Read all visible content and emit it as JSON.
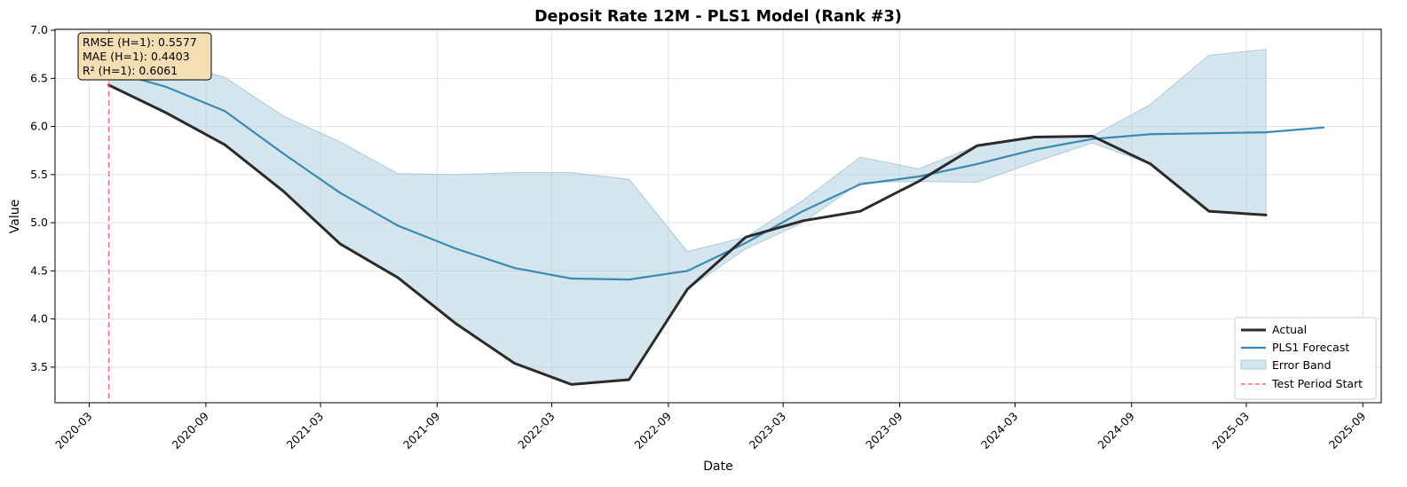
{
  "chart_data": {
    "type": "line",
    "title": "Deposit Rate 12M - PLS1 Model (Rank #3)",
    "xlabel": "Date",
    "ylabel": "Value",
    "ylim": [
      3.13,
      7.01
    ],
    "xlim": [
      "2020-01-07",
      "2025-09-30"
    ],
    "grid": true,
    "legend_position": "lower-right",
    "x_ticks": [
      "2020-03",
      "2020-09",
      "2021-03",
      "2021-09",
      "2022-03",
      "2022-09",
      "2023-03",
      "2023-09",
      "2024-03",
      "2024-09",
      "2025-03",
      "2025-09"
    ],
    "y_ticks": [
      "3.5",
      "4.0",
      "4.5",
      "5.0",
      "5.5",
      "6.0",
      "6.5",
      "7.0"
    ],
    "stats_box": [
      "RMSE (H=1): 0.5577",
      "MAE (H=1): 0.4403",
      "R² (H=1): 0.6061"
    ],
    "legend": [
      "Actual",
      "PLS1 Forecast",
      "Error Band",
      "Test Period Start"
    ],
    "series": [
      {
        "name": "Actual",
        "color": "#2b2b2b",
        "points": [
          [
            "2020-04-01",
            6.43
          ],
          [
            "2020-07-01",
            6.14
          ],
          [
            "2020-10-01",
            5.81
          ],
          [
            "2021-01-01",
            5.33
          ],
          [
            "2021-04-01",
            4.78
          ],
          [
            "2021-07-01",
            4.43
          ],
          [
            "2021-10-01",
            3.95
          ],
          [
            "2022-01-01",
            3.54
          ],
          [
            "2022-04-01",
            3.32
          ],
          [
            "2022-07-01",
            3.37
          ],
          [
            "2022-10-01",
            4.31
          ],
          [
            "2023-01-01",
            4.85
          ],
          [
            "2023-04-01",
            5.02
          ],
          [
            "2023-07-01",
            5.12
          ],
          [
            "2023-10-01",
            5.43
          ],
          [
            "2024-01-01",
            5.8
          ],
          [
            "2024-04-01",
            5.89
          ],
          [
            "2024-07-01",
            5.9
          ],
          [
            "2024-10-01",
            5.61
          ],
          [
            "2025-01-01",
            5.12
          ],
          [
            "2025-04-01",
            5.08
          ]
        ]
      },
      {
        "name": "PLS1 Forecast",
        "color": "#3a8ab3",
        "points": [
          [
            "2020-04-01",
            6.58
          ],
          [
            "2020-07-01",
            6.41
          ],
          [
            "2020-10-01",
            6.16
          ],
          [
            "2021-01-01",
            5.72
          ],
          [
            "2021-04-01",
            5.31
          ],
          [
            "2021-07-01",
            4.97
          ],
          [
            "2021-10-01",
            4.73
          ],
          [
            "2022-01-01",
            4.53
          ],
          [
            "2022-04-01",
            4.42
          ],
          [
            "2022-07-01",
            4.41
          ],
          [
            "2022-10-01",
            4.5
          ],
          [
            "2023-01-01",
            4.79
          ],
          [
            "2023-04-01",
            5.12
          ],
          [
            "2023-07-01",
            5.4
          ],
          [
            "2023-10-01",
            5.48
          ],
          [
            "2024-01-01",
            5.61
          ],
          [
            "2024-04-01",
            5.76
          ],
          [
            "2024-07-01",
            5.87
          ],
          [
            "2024-10-01",
            5.92
          ],
          [
            "2025-01-01",
            5.93
          ],
          [
            "2025-04-01",
            5.94
          ],
          [
            "2025-07-01",
            5.99
          ]
        ]
      }
    ],
    "error_band": {
      "name": "Error Band",
      "color": "#a9cbdd",
      "upper": [
        [
          "2020-04-01",
          6.72
        ],
        [
          "2020-07-01",
          6.68
        ],
        [
          "2020-10-01",
          6.51
        ],
        [
          "2021-01-01",
          6.11
        ],
        [
          "2021-04-01",
          5.84
        ],
        [
          "2021-07-01",
          5.51
        ],
        [
          "2021-10-01",
          5.5
        ],
        [
          "2022-01-01",
          5.52
        ],
        [
          "2022-04-01",
          5.52
        ],
        [
          "2022-07-01",
          5.45
        ],
        [
          "2022-10-01",
          4.7
        ],
        [
          "2023-01-01",
          4.85
        ],
        [
          "2023-04-01",
          5.23
        ],
        [
          "2023-07-01",
          5.68
        ],
        [
          "2023-10-01",
          5.56
        ],
        [
          "2024-01-01",
          5.8
        ],
        [
          "2024-04-01",
          5.89
        ],
        [
          "2024-07-01",
          5.9
        ],
        [
          "2024-10-01",
          6.23
        ],
        [
          "2025-01-01",
          6.74
        ],
        [
          "2025-04-01",
          6.8
        ]
      ],
      "lower": [
        [
          "2020-04-01",
          6.43
        ],
        [
          "2020-07-01",
          6.14
        ],
        [
          "2020-10-01",
          5.81
        ],
        [
          "2021-01-01",
          5.33
        ],
        [
          "2021-04-01",
          4.78
        ],
        [
          "2021-07-01",
          4.43
        ],
        [
          "2021-10-01",
          3.95
        ],
        [
          "2022-01-01",
          3.54
        ],
        [
          "2022-04-01",
          3.32
        ],
        [
          "2022-07-01",
          3.37
        ],
        [
          "2022-10-01",
          4.31
        ],
        [
          "2023-01-01",
          4.73
        ],
        [
          "2023-04-01",
          5.0
        ],
        [
          "2023-07-01",
          5.42
        ],
        [
          "2023-10-01",
          5.43
        ],
        [
          "2024-01-01",
          5.42
        ],
        [
          "2024-04-01",
          5.63
        ],
        [
          "2024-07-01",
          5.83
        ],
        [
          "2024-10-01",
          5.61
        ],
        [
          "2025-01-01",
          5.12
        ],
        [
          "2025-04-01",
          5.08
        ]
      ]
    },
    "reference_line": {
      "name": "Test Period Start",
      "date": "2020-04-01",
      "color": "#ff5555",
      "style": "dashed"
    }
  }
}
